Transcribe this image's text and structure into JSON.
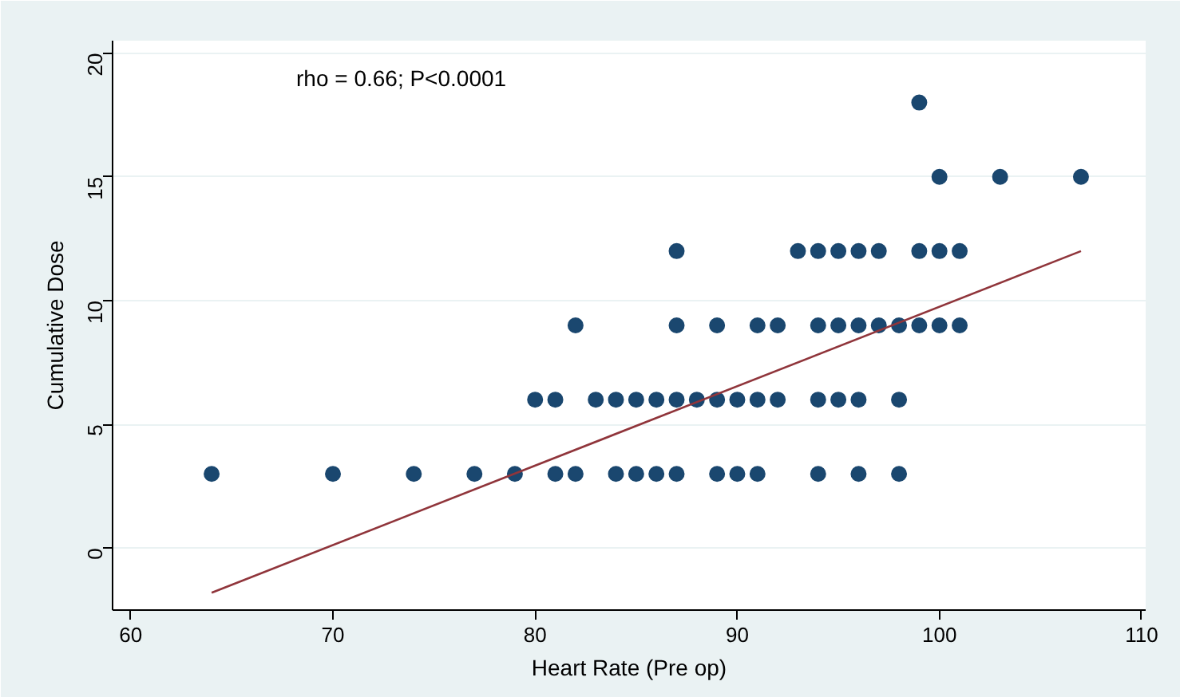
{
  "chart_data": {
    "type": "scatter",
    "xlabel": "Heart Rate (Pre op)",
    "ylabel": "Cumulative Dose",
    "annotations": [
      "rho = 0.66; P<0.0001"
    ],
    "xlim": [
      59.1,
      110.2
    ],
    "ylim": [
      -2.5,
      20.5
    ],
    "xticks": [
      60,
      70,
      80,
      90,
      100,
      110
    ],
    "yticks": [
      0,
      5,
      10,
      15,
      20
    ],
    "grid": "y",
    "series": [
      {
        "marker": "circle",
        "color": "#1a476f",
        "x": [
          64,
          70,
          74,
          77,
          79,
          81,
          82,
          84,
          85,
          86,
          87,
          89,
          90,
          91,
          94,
          96,
          98,
          80,
          81,
          83,
          84,
          85,
          86,
          87,
          88,
          89,
          90,
          91,
          92,
          94,
          95,
          96,
          98,
          82,
          87,
          89,
          91,
          92,
          94,
          95,
          96,
          97,
          98,
          99,
          100,
          101,
          87,
          93,
          94,
          95,
          96,
          97,
          99,
          100,
          101,
          100,
          103,
          107,
          99
        ],
        "values": [
          3,
          3,
          3,
          3,
          3,
          3,
          3,
          3,
          3,
          3,
          3,
          3,
          3,
          3,
          3,
          3,
          3,
          6,
          6,
          6,
          6,
          6,
          6,
          6,
          6,
          6,
          6,
          6,
          6,
          6,
          6,
          6,
          6,
          9,
          9,
          9,
          9,
          9,
          9,
          9,
          9,
          9,
          9,
          9,
          9,
          9,
          12,
          12,
          12,
          12,
          12,
          12,
          12,
          12,
          12,
          15,
          15,
          15,
          18
        ]
      },
      {
        "type": "line",
        "color": "#90353b",
        "x": [
          64,
          107
        ],
        "values": [
          -1.8,
          12.0
        ]
      }
    ]
  }
}
